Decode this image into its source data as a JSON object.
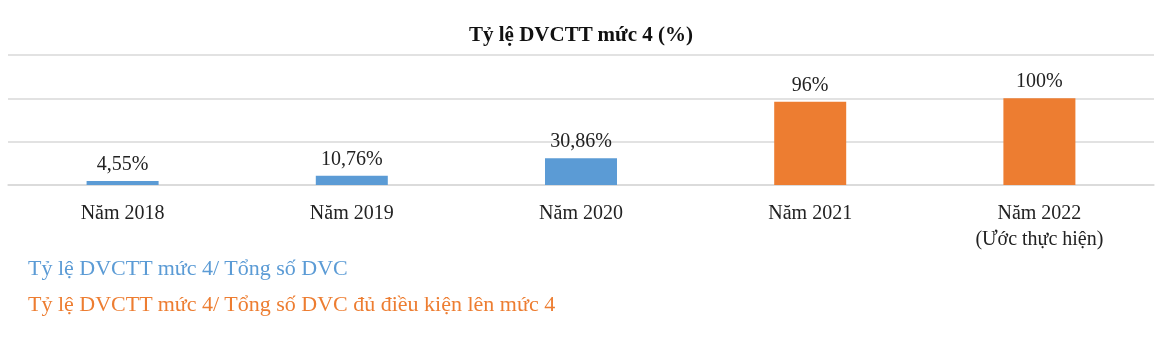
{
  "chart_data": {
    "type": "bar",
    "title": "Tỷ lệ DVCTT mức 4 (%)",
    "categories": [
      "Năm 2018",
      "Năm 2019",
      "Năm 2020",
      "Năm 2021",
      "Năm 2022\n(Ước thực hiện)"
    ],
    "series": [
      {
        "name": "Tỷ lệ DVCTT mức 4/ Tổng số DVC",
        "color": "#5b9bd5",
        "values": [
          4.55,
          10.76,
          30.86,
          null,
          null
        ],
        "value_labels": [
          "4,55%",
          "10,76%",
          "30,86%",
          null,
          null
        ]
      },
      {
        "name": "Tỷ lệ DVCTT mức 4/ Tổng số DVC đủ điều kiện lên mức 4",
        "color": "#ed7d31",
        "values": [
          null,
          null,
          null,
          96,
          100
        ],
        "value_labels": [
          null,
          null,
          null,
          "96%",
          "100%"
        ]
      }
    ],
    "ylim": [
      0,
      150
    ],
    "yticks": [
      {
        "value": 0,
        "label": null
      },
      {
        "value": 50,
        "label": null
      },
      {
        "value": 100,
        "label": null
      },
      {
        "value": 150,
        "label": null
      }
    ],
    "tick_labels": "x",
    "grid": "y",
    "legend": "bottom left"
  }
}
